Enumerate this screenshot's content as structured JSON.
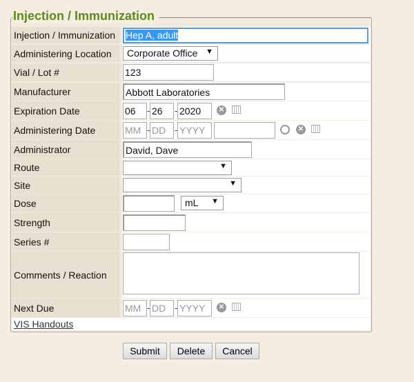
{
  "legend": "Injection / Immunization",
  "fields": {
    "injection": {
      "label": "Injection / Immunization",
      "value": "Hep A, adult"
    },
    "location": {
      "label": "Administering Location",
      "value": "Corporate Office"
    },
    "lot": {
      "label": "Vial / Lot #",
      "value": "123"
    },
    "manufacturer": {
      "label": "Manufacturer",
      "value": "Abbott Laboratories"
    },
    "expiration": {
      "label": "Expiration Date",
      "mm": "06",
      "dd": "26",
      "yyyy": "2020"
    },
    "admin_date": {
      "label": "Administering Date",
      "mm_ph": "MM",
      "dd_ph": "DD",
      "yyyy_ph": "YYYY",
      "time": ""
    },
    "administrator": {
      "label": "Administrator",
      "value": "David, Dave"
    },
    "route": {
      "label": "Route",
      "value": ""
    },
    "site": {
      "label": "Site",
      "value": ""
    },
    "dose": {
      "label": "Dose",
      "value": "",
      "unit": "mL"
    },
    "strength": {
      "label": "Strength",
      "value": ""
    },
    "series": {
      "label": "Series #",
      "value": ""
    },
    "comments": {
      "label": "Comments / Reaction",
      "value": ""
    },
    "next_due": {
      "label": "Next Due",
      "mm_ph": "MM",
      "dd_ph": "DD",
      "yyyy_ph": "YYYY"
    }
  },
  "sep": "-",
  "arrow": "▼",
  "vis_link": "VIS Handouts",
  "buttons": {
    "submit": "Submit",
    "delete": "Delete",
    "cancel": "Cancel"
  },
  "colors": {
    "legend": "#5e8a1e",
    "selection": "#3399ff"
  }
}
